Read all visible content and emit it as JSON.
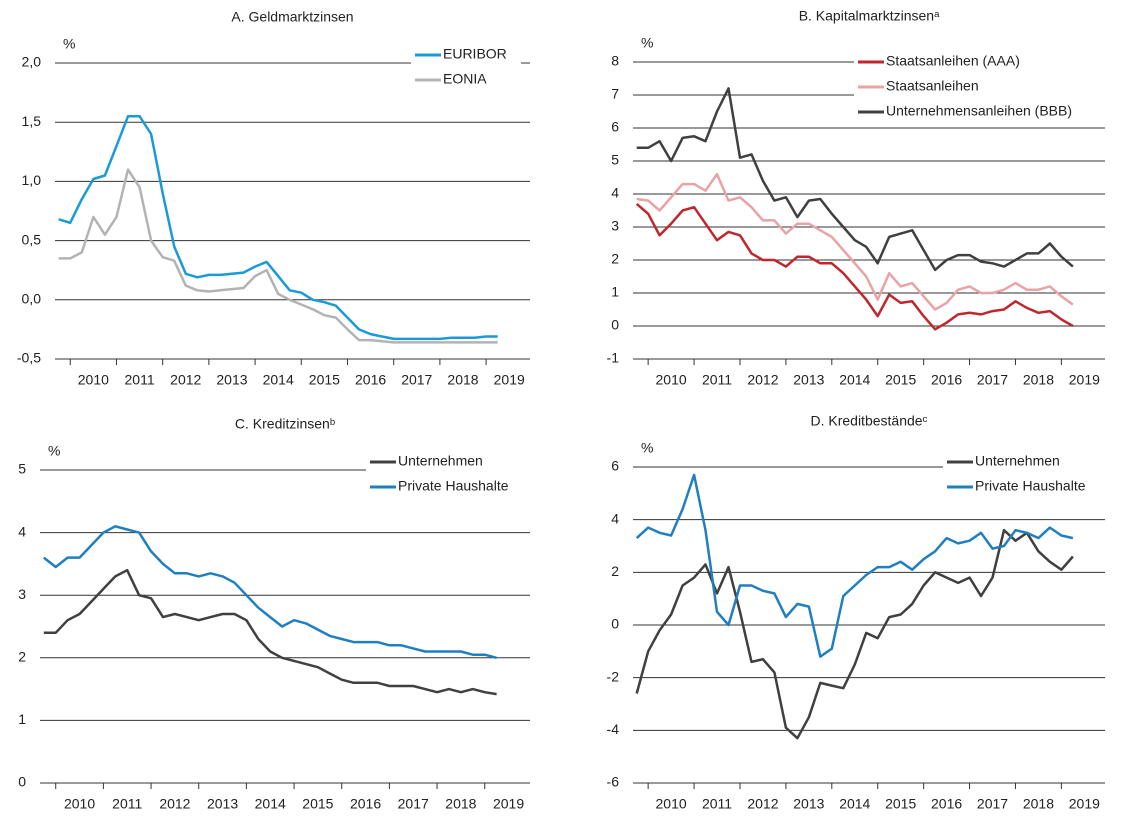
{
  "chart_data": [
    {
      "type": "line",
      "title": "A. Geldmarktzinsen",
      "unit": "%",
      "x": [
        2009.75,
        2010,
        2010.25,
        2010.5,
        2010.75,
        2011,
        2011.25,
        2011.5,
        2011.75,
        2012,
        2012.25,
        2012.5,
        2012.75,
        2013,
        2013.25,
        2013.5,
        2013.75,
        2014,
        2014.25,
        2014.5,
        2014.75,
        2015,
        2015.25,
        2015.5,
        2015.75,
        2016,
        2016.25,
        2016.5,
        2016.75,
        2017,
        2017.25,
        2017.5,
        2017.75,
        2018,
        2018.25,
        2018.5,
        2018.75,
        2019,
        2019.25
      ],
      "xlim": [
        2009.67,
        2019.95
      ],
      "xticks": [
        2010,
        2011,
        2012,
        2013,
        2014,
        2015,
        2016,
        2017,
        2018,
        2019
      ],
      "ylim": [
        -0.5,
        2.0
      ],
      "yticks": [
        {
          "value": -0.5,
          "label": "-0,5"
        },
        {
          "value": 0,
          "label": "0,0"
        },
        {
          "value": 0.5,
          "label": "0,5"
        },
        {
          "value": 1.0,
          "label": "1,0"
        },
        {
          "value": 1.5,
          "label": "1,5"
        },
        {
          "value": 2.0,
          "label": "2,0"
        }
      ],
      "grid": true,
      "series": [
        {
          "name": "EURIBOR",
          "color": "#1a9ad6",
          "values": [
            0.68,
            0.65,
            0.85,
            1.02,
            1.05,
            1.3,
            1.55,
            1.55,
            1.4,
            0.9,
            0.45,
            0.22,
            0.19,
            0.21,
            0.21,
            0.22,
            0.23,
            0.28,
            0.32,
            0.2,
            0.08,
            0.06,
            0,
            -0.02,
            -0.05,
            -0.15,
            -0.25,
            -0.29,
            -0.31,
            -0.33,
            -0.33,
            -0.33,
            -0.33,
            -0.33,
            -0.32,
            -0.32,
            -0.32,
            -0.31,
            -0.31
          ]
        },
        {
          "name": "EONIA",
          "color": "#b3b3b3",
          "values": [
            0.35,
            0.35,
            0.4,
            0.7,
            0.55,
            0.7,
            1.1,
            0.95,
            0.5,
            0.36,
            0.33,
            0.12,
            0.08,
            0.07,
            0.08,
            0.09,
            0.1,
            0.2,
            0.25,
            0.05,
            0,
            -0.04,
            -0.08,
            -0.13,
            -0.15,
            -0.25,
            -0.34,
            -0.34,
            -0.35,
            -0.36,
            -0.36,
            -0.36,
            -0.36,
            -0.36,
            -0.36,
            -0.36,
            -0.36,
            -0.36,
            -0.36
          ]
        }
      ]
    },
    {
      "type": "line",
      "title": "B. Kapitalmarktzinsenᵃ",
      "unit": "%",
      "x": [
        2009.75,
        2010,
        2010.25,
        2010.5,
        2010.75,
        2011,
        2011.25,
        2011.5,
        2011.75,
        2012,
        2012.25,
        2012.5,
        2012.75,
        2013,
        2013.25,
        2013.5,
        2013.75,
        2014,
        2014.25,
        2014.5,
        2014.75,
        2015,
        2015.25,
        2015.5,
        2015.75,
        2016,
        2016.25,
        2016.5,
        2016.75,
        2017,
        2017.25,
        2017.5,
        2017.75,
        2018,
        2018.25,
        2018.5,
        2018.75,
        2019,
        2019.25
      ],
      "xlim": [
        2009.67,
        2019.95
      ],
      "xticks": [
        2010,
        2011,
        2012,
        2013,
        2014,
        2015,
        2016,
        2017,
        2018,
        2019
      ],
      "ylim": [
        -1,
        8
      ],
      "yticks": [
        -1,
        0,
        1,
        2,
        3,
        4,
        5,
        6,
        7,
        8
      ],
      "grid": true,
      "series": [
        {
          "name": "Staatsanleihen (AAA)",
          "color": "#c0272d",
          "values": [
            3.7,
            3.4,
            2.75,
            3.1,
            3.5,
            3.6,
            3.1,
            2.6,
            2.85,
            2.75,
            2.2,
            2.0,
            2.0,
            1.8,
            2.1,
            2.1,
            1.9,
            1.9,
            1.6,
            1.2,
            0.8,
            0.3,
            0.95,
            0.7,
            0.75,
            0.3,
            -0.1,
            0.1,
            0.35,
            0.4,
            0.35,
            0.45,
            0.5,
            0.75,
            0.55,
            0.4,
            0.45,
            0.2,
            0.0
          ]
        },
        {
          "name": "Staatsanleihen",
          "color": "#e8a3a6",
          "values": [
            3.85,
            3.8,
            3.5,
            3.9,
            4.3,
            4.3,
            4.1,
            4.6,
            3.8,
            3.9,
            3.6,
            3.2,
            3.2,
            2.8,
            3.1,
            3.1,
            2.9,
            2.7,
            2.3,
            1.9,
            1.5,
            0.8,
            1.6,
            1.2,
            1.3,
            0.9,
            0.5,
            0.7,
            1.1,
            1.2,
            1.0,
            1.0,
            1.1,
            1.3,
            1.1,
            1.1,
            1.2,
            0.9,
            0.65
          ]
        },
        {
          "name": "Unternehmensanleihen (BBB)",
          "color": "#404040",
          "values": [
            5.4,
            5.4,
            5.6,
            5.0,
            5.7,
            5.75,
            5.6,
            6.5,
            7.2,
            5.1,
            5.2,
            4.4,
            3.8,
            3.9,
            3.3,
            3.8,
            3.85,
            3.4,
            3.0,
            2.6,
            2.4,
            1.9,
            2.7,
            2.8,
            2.9,
            2.3,
            1.7,
            2.0,
            2.15,
            2.15,
            1.95,
            1.9,
            1.8,
            2.0,
            2.2,
            2.2,
            2.5,
            2.1,
            1.8
          ]
        }
      ]
    },
    {
      "type": "line",
      "title": "C. Kreditzinsenᵇ",
      "unit": "%",
      "x": [
        2009.75,
        2010,
        2010.25,
        2010.5,
        2010.75,
        2011,
        2011.25,
        2011.5,
        2011.75,
        2012,
        2012.25,
        2012.5,
        2012.75,
        2013,
        2013.25,
        2013.5,
        2013.75,
        2014,
        2014.25,
        2014.5,
        2014.75,
        2015,
        2015.25,
        2015.5,
        2015.75,
        2016,
        2016.25,
        2016.5,
        2016.75,
        2017,
        2017.25,
        2017.5,
        2017.75,
        2018,
        2018.25,
        2018.5,
        2018.75,
        2019,
        2019.25
      ],
      "xlim": [
        2009.67,
        2019.95
      ],
      "xticks": [
        2010,
        2011,
        2012,
        2013,
        2014,
        2015,
        2016,
        2017,
        2018,
        2019
      ],
      "ylim": [
        0,
        5
      ],
      "yticks": [
        0,
        1,
        2,
        3,
        4,
        5
      ],
      "grid": true,
      "series": [
        {
          "name": "Unternehmen",
          "color": "#404040",
          "values": [
            2.4,
            2.4,
            2.6,
            2.7,
            2.9,
            3.1,
            3.3,
            3.4,
            3.0,
            2.95,
            2.65,
            2.7,
            2.65,
            2.6,
            2.65,
            2.7,
            2.7,
            2.6,
            2.3,
            2.1,
            2.0,
            1.95,
            1.9,
            1.85,
            1.75,
            1.65,
            1.6,
            1.6,
            1.6,
            1.55,
            1.55,
            1.55,
            1.5,
            1.45,
            1.5,
            1.45,
            1.5,
            1.45,
            1.42
          ]
        },
        {
          "name": "Private Haushalte",
          "color": "#1f7fc1",
          "values": [
            3.6,
            3.45,
            3.6,
            3.6,
            3.8,
            4.0,
            4.1,
            4.05,
            4.0,
            3.7,
            3.5,
            3.35,
            3.35,
            3.3,
            3.35,
            3.3,
            3.2,
            3.0,
            2.8,
            2.65,
            2.5,
            2.6,
            2.55,
            2.45,
            2.35,
            2.3,
            2.25,
            2.25,
            2.25,
            2.2,
            2.2,
            2.15,
            2.1,
            2.1,
            2.1,
            2.1,
            2.05,
            2.05,
            2.0
          ]
        }
      ]
    },
    {
      "type": "line",
      "title": "D. Kreditbeständeᶜ",
      "unit": "%",
      "x": [
        2009.75,
        2010,
        2010.25,
        2010.5,
        2010.75,
        2011,
        2011.25,
        2011.5,
        2011.75,
        2012,
        2012.25,
        2012.5,
        2012.75,
        2013,
        2013.25,
        2013.5,
        2013.75,
        2014,
        2014.25,
        2014.5,
        2014.75,
        2015,
        2015.25,
        2015.5,
        2015.75,
        2016,
        2016.25,
        2016.5,
        2016.75,
        2017,
        2017.25,
        2017.5,
        2017.75,
        2018,
        2018.25,
        2018.5,
        2018.75,
        2019,
        2019.25
      ],
      "xlim": [
        2009.67,
        2019.95
      ],
      "xticks": [
        2010,
        2011,
        2012,
        2013,
        2014,
        2015,
        2016,
        2017,
        2018,
        2019
      ],
      "ylim": [
        -6,
        6
      ],
      "yticks": [
        -6,
        -4,
        -2,
        0,
        2,
        4,
        6
      ],
      "grid": true,
      "series": [
        {
          "name": "Unternehmen",
          "color": "#404040",
          "values": [
            -2.6,
            -1.0,
            -0.2,
            0.4,
            1.5,
            1.8,
            2.3,
            1.2,
            2.2,
            0.5,
            -1.4,
            -1.3,
            -1.8,
            -3.9,
            -4.3,
            -3.5,
            -2.2,
            -2.3,
            -2.4,
            -1.5,
            -0.3,
            -0.5,
            0.3,
            0.4,
            0.8,
            1.5,
            2.0,
            1.8,
            1.6,
            1.8,
            1.1,
            1.8,
            3.6,
            3.2,
            3.5,
            2.8,
            2.4,
            2.1,
            2.6
          ]
        },
        {
          "name": "Private Haushalte",
          "color": "#1f7fc1",
          "values": [
            3.3,
            3.7,
            3.5,
            3.4,
            4.4,
            5.7,
            3.6,
            0.5,
            0.0,
            1.5,
            1.5,
            1.3,
            1.2,
            0.3,
            0.8,
            0.7,
            -1.2,
            -0.9,
            1.1,
            1.5,
            1.9,
            2.2,
            2.2,
            2.4,
            2.1,
            2.5,
            2.8,
            3.3,
            3.1,
            3.2,
            3.5,
            2.9,
            3.0,
            3.6,
            3.5,
            3.3,
            3.7,
            3.4,
            3.3
          ]
        }
      ]
    }
  ]
}
